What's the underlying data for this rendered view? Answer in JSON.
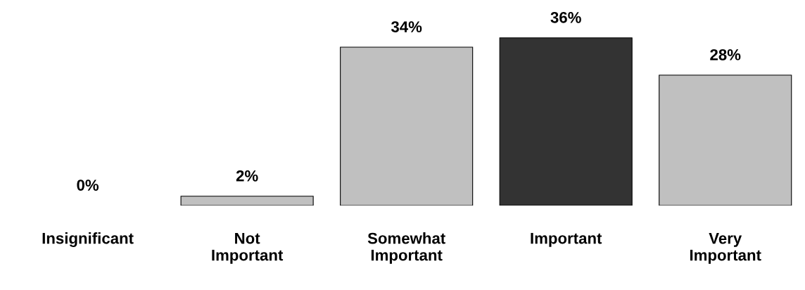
{
  "chart_data": {
    "type": "bar",
    "categories": [
      "Insignificant",
      "Not\nImportant",
      "Somewhat\nImportant",
      "Important",
      "Very\nImportant"
    ],
    "values": [
      0,
      2,
      34,
      36,
      28
    ],
    "colors": [
      "#c0c0c0",
      "#c0c0c0",
      "#c0c0c0",
      "#333333",
      "#c0c0c0"
    ],
    "value_labels": [
      "0%",
      "2%",
      "34%",
      "36%",
      "28%"
    ]
  }
}
